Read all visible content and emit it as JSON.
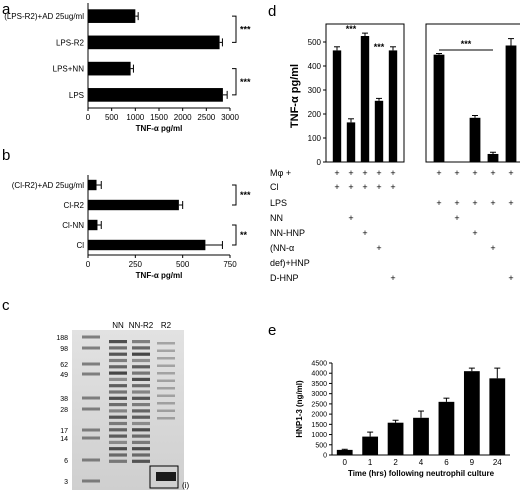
{
  "chart_data": [
    {
      "panel": "a",
      "type": "bar",
      "orientation": "horizontal",
      "categories": [
        "(LPS-R2)+AD 25ug/ml",
        "LPS-R2",
        "LPS+NN",
        "LPS"
      ],
      "values": [
        1000,
        2780,
        900,
        2850
      ],
      "errors": [
        60,
        60,
        60,
        90
      ],
      "xlabel": "TNF-α pg/ml",
      "xlim": [
        0,
        3000
      ],
      "xticks": [
        "0",
        "500",
        "1000",
        "1500",
        "2000",
        "2500",
        "3000"
      ],
      "significance": [
        "***",
        "***"
      ]
    },
    {
      "panel": "b",
      "type": "bar",
      "orientation": "horizontal",
      "categories": [
        "(Cl-R2)+AD 25ug/ml",
        "Cl-R2",
        "Cl-NN",
        "Cl"
      ],
      "values": [
        45,
        480,
        50,
        620
      ],
      "errors": [
        25,
        20,
        20,
        90
      ],
      "xlabel": "TNF-α pg/ml",
      "xlim": [
        0,
        750
      ],
      "xticks": [
        "0",
        "250",
        "500",
        "750"
      ],
      "significance": [
        "***",
        "**"
      ]
    },
    {
      "panel": "d",
      "type": "bar",
      "ylabel": "TNF-α pg/ml",
      "groups": [
        {
          "values": [
            465,
            165,
            525,
            255,
            465
          ],
          "errors": [
            15,
            15,
            12,
            10,
            15
          ],
          "ylim": [
            0,
            550
          ],
          "yticks": [
            "0",
            "100",
            "200",
            "300",
            "400",
            "500"
          ],
          "significance": [
            "***",
            "***"
          ]
        },
        {
          "values": [
            1870,
            0,
            770,
            140,
            2030
          ],
          "errors": [
            20,
            0,
            40,
            30,
            120
          ],
          "ylim": [
            0,
            2300
          ],
          "significance": [
            "***"
          ]
        }
      ],
      "row_labels": [
        "Mφ",
        "Cl",
        "LPS",
        "NN",
        "NN-HNP",
        "(NN-α",
        "def)+HNP",
        "D-HNP"
      ],
      "plus_sign": "+"
    },
    {
      "panel": "e",
      "type": "bar",
      "categories": [
        "0",
        "1",
        "2",
        "4",
        "6",
        "9",
        "24"
      ],
      "values": [
        250,
        900,
        1580,
        1820,
        2600,
        4100,
        3750
      ],
      "errors": [
        30,
        220,
        120,
        330,
        180,
        150,
        500
      ],
      "ylabel": "HNP1-3 (ng/ml)",
      "xlabel": "Time (hrs) following neutrophil culture",
      "ylim": [
        0,
        4500
      ],
      "yticks": [
        "0",
        "500",
        "1000",
        "1500",
        "2000",
        "2500",
        "3000",
        "3500",
        "4000",
        "4500"
      ]
    }
  ],
  "panel_labels": {
    "a": "a",
    "b": "b",
    "c": "c",
    "d": "d",
    "e": "e"
  },
  "gel": {
    "lanes": [
      "NN",
      "NN-R2",
      "R2"
    ],
    "markers": [
      "188",
      "98",
      "62",
      "49",
      "38",
      "28",
      "17",
      "14",
      "6",
      "3"
    ],
    "box_label": "(i)"
  }
}
